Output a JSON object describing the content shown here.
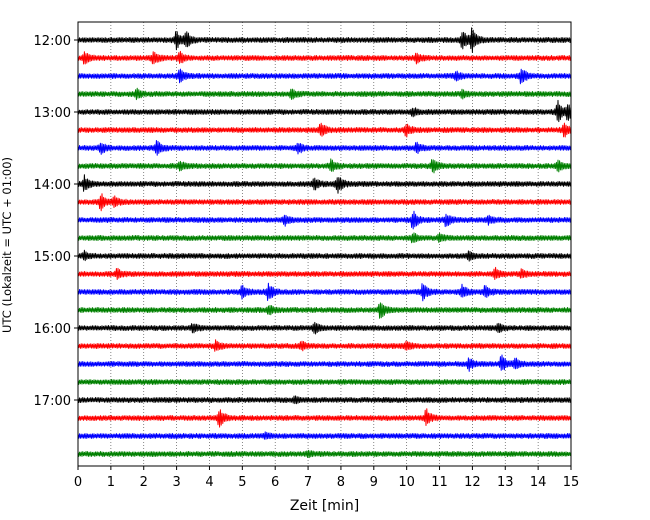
{
  "chart_data": {
    "type": "line",
    "xlabel": "Zeit  [min]",
    "ylabel": "UTC (Lokalzeit = UTC + 01:00)",
    "x_ticks": [
      "0",
      "1",
      "2",
      "3",
      "4",
      "5",
      "6",
      "7",
      "8",
      "9",
      "10",
      "11",
      "12",
      "13",
      "14",
      "15"
    ],
    "xlim": [
      0,
      15
    ],
    "grid": "vertical dotted lines at each minute",
    "y_ticks": [
      "12:00",
      "13:00",
      "14:00",
      "15:00",
      "16:00",
      "17:00"
    ],
    "row_interval_minutes": 15,
    "first_row": "12:00",
    "row_count": 24,
    "color_cycle": [
      "#000000",
      "#ff0000",
      "#0000ff",
      "#008000"
    ],
    "series": [
      {
        "start": "12:00",
        "color": "#000000",
        "events": [
          {
            "t": 3.0,
            "amp": 0.9
          },
          {
            "t": 3.3,
            "amp": 0.8
          },
          {
            "t": 11.7,
            "amp": 1.0
          },
          {
            "t": 12.0,
            "amp": 1.3
          }
        ]
      },
      {
        "start": "12:15",
        "color": "#ff0000",
        "events": [
          {
            "t": 0.2,
            "amp": 0.7
          },
          {
            "t": 2.3,
            "amp": 0.6
          },
          {
            "t": 3.1,
            "amp": 0.6
          },
          {
            "t": 10.3,
            "amp": 0.5
          }
        ]
      },
      {
        "start": "12:30",
        "color": "#0000ff",
        "events": [
          {
            "t": 3.1,
            "amp": 0.7
          },
          {
            "t": 11.5,
            "amp": 0.5
          },
          {
            "t": 13.5,
            "amp": 0.9
          }
        ]
      },
      {
        "start": "12:45",
        "color": "#008000",
        "events": [
          {
            "t": 1.8,
            "amp": 0.5
          },
          {
            "t": 6.5,
            "amp": 0.5
          },
          {
            "t": 11.7,
            "amp": 0.4
          }
        ]
      },
      {
        "start": "13:00",
        "color": "#000000",
        "events": [
          {
            "t": 10.2,
            "amp": 0.4
          },
          {
            "t": 14.6,
            "amp": 1.2
          },
          {
            "t": 14.9,
            "amp": 0.9
          }
        ]
      },
      {
        "start": "13:15",
        "color": "#ff0000",
        "events": [
          {
            "t": 7.4,
            "amp": 0.7
          },
          {
            "t": 10.0,
            "amp": 0.6
          },
          {
            "t": 14.8,
            "amp": 0.7
          }
        ]
      },
      {
        "start": "13:30",
        "color": "#0000ff",
        "events": [
          {
            "t": 0.7,
            "amp": 0.6
          },
          {
            "t": 2.4,
            "amp": 0.8
          },
          {
            "t": 6.7,
            "amp": 0.6
          },
          {
            "t": 10.3,
            "amp": 0.5
          }
        ]
      },
      {
        "start": "13:45",
        "color": "#008000",
        "events": [
          {
            "t": 3.1,
            "amp": 0.5
          },
          {
            "t": 7.7,
            "amp": 0.6
          },
          {
            "t": 10.8,
            "amp": 0.8
          },
          {
            "t": 14.6,
            "amp": 0.6
          }
        ]
      },
      {
        "start": "14:00",
        "color": "#000000",
        "events": [
          {
            "t": 0.2,
            "amp": 0.8
          },
          {
            "t": 7.2,
            "amp": 0.6
          },
          {
            "t": 7.9,
            "amp": 1.1
          }
        ]
      },
      {
        "start": "14:15",
        "color": "#ff0000",
        "events": [
          {
            "t": 0.7,
            "amp": 1.0
          },
          {
            "t": 1.1,
            "amp": 0.5
          }
        ]
      },
      {
        "start": "14:30",
        "color": "#0000ff",
        "events": [
          {
            "t": 6.3,
            "amp": 0.5
          },
          {
            "t": 10.2,
            "amp": 0.9
          },
          {
            "t": 11.2,
            "amp": 0.7
          },
          {
            "t": 12.5,
            "amp": 0.4
          }
        ]
      },
      {
        "start": "14:45",
        "color": "#008000",
        "events": [
          {
            "t": 10.2,
            "amp": 0.5
          },
          {
            "t": 11.0,
            "amp": 0.4
          }
        ]
      },
      {
        "start": "15:00",
        "color": "#000000",
        "events": [
          {
            "t": 0.2,
            "amp": 0.4
          },
          {
            "t": 11.9,
            "amp": 0.4
          }
        ]
      },
      {
        "start": "15:15",
        "color": "#ff0000",
        "events": [
          {
            "t": 1.2,
            "amp": 0.5
          },
          {
            "t": 12.7,
            "amp": 0.6
          },
          {
            "t": 13.5,
            "amp": 0.4
          }
        ]
      },
      {
        "start": "15:30",
        "color": "#0000ff",
        "events": [
          {
            "t": 5.0,
            "amp": 0.7
          },
          {
            "t": 5.8,
            "amp": 1.1
          },
          {
            "t": 10.5,
            "amp": 0.9
          },
          {
            "t": 11.7,
            "amp": 0.7
          },
          {
            "t": 12.4,
            "amp": 0.6
          }
        ]
      },
      {
        "start": "15:45",
        "color": "#008000",
        "events": [
          {
            "t": 5.8,
            "amp": 0.5
          },
          {
            "t": 9.2,
            "amp": 0.9
          }
        ]
      },
      {
        "start": "16:00",
        "color": "#000000",
        "events": [
          {
            "t": 3.5,
            "amp": 0.4
          },
          {
            "t": 7.2,
            "amp": 0.6
          },
          {
            "t": 12.8,
            "amp": 0.4
          }
        ]
      },
      {
        "start": "16:15",
        "color": "#ff0000",
        "events": [
          {
            "t": 4.2,
            "amp": 0.5
          },
          {
            "t": 6.8,
            "amp": 0.4
          },
          {
            "t": 10.0,
            "amp": 0.4
          }
        ]
      },
      {
        "start": "16:30",
        "color": "#0000ff",
        "events": [
          {
            "t": 11.9,
            "amp": 0.6
          },
          {
            "t": 12.9,
            "amp": 0.9
          },
          {
            "t": 13.3,
            "amp": 0.6
          }
        ]
      },
      {
        "start": "16:45",
        "color": "#008000",
        "events": []
      },
      {
        "start": "17:00",
        "color": "#000000",
        "events": [
          {
            "t": 6.6,
            "amp": 0.3
          }
        ]
      },
      {
        "start": "17:15",
        "color": "#ff0000",
        "events": [
          {
            "t": 4.3,
            "amp": 1.0
          },
          {
            "t": 10.6,
            "amp": 0.9
          }
        ]
      },
      {
        "start": "17:30",
        "color": "#0000ff",
        "events": [
          {
            "t": 5.7,
            "amp": 0.3
          }
        ]
      },
      {
        "start": "17:45",
        "color": "#008000",
        "events": [
          {
            "t": 7.0,
            "amp": 0.3
          }
        ]
      }
    ]
  }
}
